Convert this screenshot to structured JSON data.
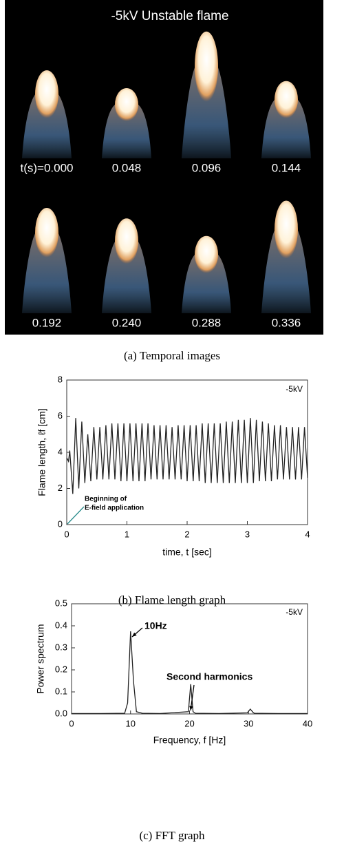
{
  "figure_a": {
    "title": "-5kV Unstable flame",
    "labels": [
      "t(s)=0.000",
      "0.048",
      "0.096",
      "0.144",
      "0.192",
      "0.240",
      "0.288",
      "0.336"
    ],
    "caption": "(a)    Temporal images"
  },
  "chart_data": [
    {
      "type": "line",
      "caption": "(b)    Flame length graph",
      "xlabel": "time, t [sec]",
      "ylabel": "Flame length, ℓf [cm]",
      "annotations": [
        "-5kV",
        "Beginning of",
        "E-field application"
      ],
      "color": "#222222",
      "x": [
        0,
        0.03,
        0.05,
        0.1,
        0.15,
        0.2,
        0.25,
        0.3,
        0.35,
        0.4,
        0.45,
        0.5,
        0.55,
        0.6,
        0.65,
        0.7,
        0.75,
        0.8,
        0.85,
        0.9,
        0.95,
        1.0,
        1.05,
        1.1,
        1.15,
        1.2,
        1.25,
        1.3,
        1.35,
        1.4,
        1.45,
        1.5,
        1.55,
        1.6,
        1.65,
        1.7,
        1.75,
        1.8,
        1.85,
        1.9,
        1.95,
        2.0,
        2.05,
        2.1,
        2.15,
        2.2,
        2.25,
        2.3,
        2.35,
        2.4,
        2.45,
        2.5,
        2.55,
        2.6,
        2.65,
        2.7,
        2.75,
        2.8,
        2.85,
        2.9,
        2.95,
        3.0,
        3.05,
        3.1,
        3.15,
        3.2,
        3.25,
        3.3,
        3.35,
        3.4,
        3.45,
        3.5,
        3.55,
        3.6,
        3.65,
        3.7,
        3.75,
        3.8,
        3.85,
        3.9,
        3.95,
        4.0
      ],
      "values": [
        3.7,
        3.5,
        4.1,
        1.7,
        5.9,
        2.0,
        5.7,
        2.3,
        5.0,
        2.4,
        5.4,
        2.5,
        5.4,
        2.5,
        5.5,
        2.5,
        5.6,
        2.5,
        5.6,
        2.4,
        5.6,
        2.4,
        5.6,
        2.4,
        5.6,
        2.4,
        5.6,
        2.4,
        5.6,
        2.5,
        5.5,
        2.5,
        5.5,
        2.5,
        5.5,
        2.5,
        5.4,
        2.5,
        5.5,
        2.5,
        5.5,
        2.4,
        5.5,
        2.4,
        5.5,
        2.4,
        5.6,
        2.3,
        5.6,
        2.3,
        5.6,
        2.3,
        5.6,
        2.3,
        5.7,
        2.3,
        5.7,
        2.3,
        5.8,
        2.3,
        5.8,
        2.3,
        5.9,
        2.3,
        5.8,
        2.4,
        5.7,
        2.4,
        5.6,
        2.4,
        5.5,
        2.5,
        5.5,
        2.5,
        5.4,
        2.5,
        5.4,
        2.5,
        5.4,
        2.5,
        5.4,
        2.6
      ],
      "xlim": [
        0,
        4
      ],
      "xticks": [
        0,
        1,
        2,
        3,
        4
      ],
      "ylim": [
        0,
        8
      ],
      "yticks": [
        0,
        2,
        4,
        6,
        8
      ]
    },
    {
      "type": "line",
      "caption": "(c)    FFT graph",
      "xlabel": "Frequency, f [Hz]",
      "ylabel": "Power spectrum",
      "annotations": [
        "-5kV",
        "10Hz",
        "Second harmonics"
      ],
      "color": "#222222",
      "x": [
        0,
        5,
        9,
        9.5,
        10,
        10.5,
        11,
        12,
        15,
        19.8,
        20.2,
        20.6,
        21,
        25,
        29.8,
        30.3,
        30.8,
        31,
        35,
        40
      ],
      "values": [
        0.002,
        0.002,
        0.003,
        0.05,
        0.375,
        0.15,
        0.01,
        0.003,
        0.002,
        0.01,
        0.135,
        0.01,
        0.003,
        0.002,
        0.005,
        0.022,
        0.006,
        0.003,
        0.002,
        0.002
      ],
      "xlim": [
        0,
        40
      ],
      "xticks": [
        0,
        10,
        20,
        30,
        40
      ],
      "ylim": [
        0,
        0.5
      ],
      "yticks": [
        {
          "value": 0,
          "label": "0.0"
        },
        0.1,
        0.2,
        0.3,
        0.4,
        0.5
      ]
    }
  ]
}
